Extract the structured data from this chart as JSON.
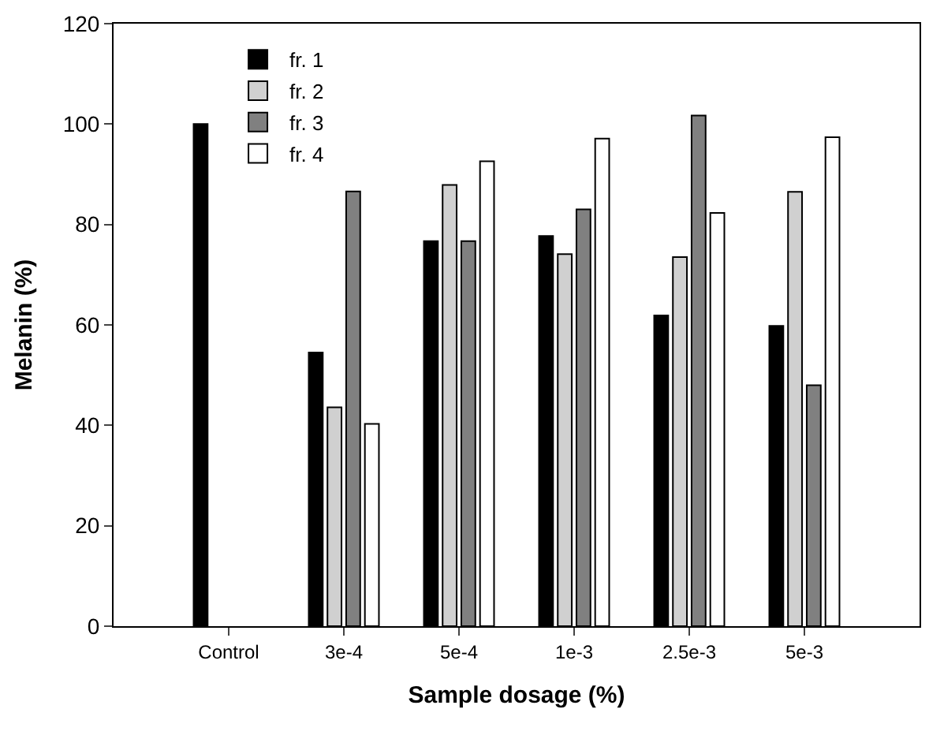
{
  "chart_data": {
    "type": "bar",
    "xlabel": "Sample dosage (%)",
    "ylabel": "Melanin (%)",
    "categories": [
      "Control",
      "3e-4",
      "5e-4",
      "1e-3",
      "2.5e-3",
      "5e-3"
    ],
    "series": [
      {
        "name": "fr. 1",
        "color": "#000000",
        "values": [
          100,
          54.5,
          76.7,
          77.7,
          61.9,
          59.8
        ]
      },
      {
        "name": "fr. 2",
        "color": "#d0d0d0",
        "values": [
          null,
          43.6,
          87.9,
          74.1,
          73.5,
          86.5
        ]
      },
      {
        "name": "fr. 3",
        "color": "#808080",
        "values": [
          null,
          86.6,
          76.7,
          83,
          101.7,
          48
        ]
      },
      {
        "name": "fr. 4",
        "color": "#ffffff",
        "values": [
          null,
          40.3,
          92.6,
          97.1,
          82.3,
          97.4
        ]
      }
    ],
    "ylim": [
      0,
      120
    ],
    "yticks": [
      0,
      20,
      40,
      60,
      80,
      100,
      120
    ],
    "grid": false,
    "legend": "top left"
  }
}
